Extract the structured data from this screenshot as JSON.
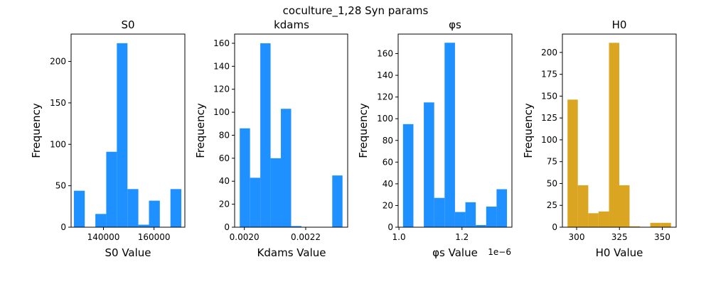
{
  "figure": {
    "suptitle": "coculture_1,28 Syn params"
  },
  "chart_data": [
    {
      "type": "bar",
      "title": "S0",
      "xlabel": "S0 Value",
      "ylabel": "Frequency",
      "color": "#1e90ff",
      "bins": [
        {
          "x0": 128300,
          "x1": 132600,
          "count": 44
        },
        {
          "x0": 132600,
          "x1": 136800,
          "count": 0
        },
        {
          "x0": 136800,
          "x1": 141100,
          "count": 16
        },
        {
          "x0": 141100,
          "x1": 145300,
          "count": 91
        },
        {
          "x0": 145300,
          "x1": 149500,
          "count": 222
        },
        {
          "x0": 149500,
          "x1": 153800,
          "count": 46
        },
        {
          "x0": 153800,
          "x1": 158000,
          "count": 3
        },
        {
          "x0": 158000,
          "x1": 162300,
          "count": 32
        },
        {
          "x0": 162300,
          "x1": 166500,
          "count": 0
        },
        {
          "x0": 166500,
          "x1": 170800,
          "count": 46
        }
      ],
      "xlim": [
        127200,
        172200
      ],
      "ylim": [
        0,
        233
      ],
      "xticks": [
        {
          "v": 140000,
          "label": "140000"
        },
        {
          "v": 160000,
          "label": "160000"
        }
      ],
      "yticks": [
        {
          "v": 0,
          "label": "0"
        },
        {
          "v": 50,
          "label": "50"
        },
        {
          "v": 100,
          "label": "100"
        },
        {
          "v": 150,
          "label": "150"
        },
        {
          "v": 200,
          "label": "200"
        }
      ]
    },
    {
      "type": "bar",
      "title": "kdams",
      "xlabel": "Kdams Value",
      "ylabel": "Frequency",
      "color": "#1e90ff",
      "bins": [
        {
          "x0": 0.001985,
          "x1": 0.0020185,
          "count": 86
        },
        {
          "x0": 0.0020185,
          "x1": 0.002052,
          "count": 43
        },
        {
          "x0": 0.002052,
          "x1": 0.0020855,
          "count": 160
        },
        {
          "x0": 0.0020855,
          "x1": 0.002119,
          "count": 60
        },
        {
          "x0": 0.002119,
          "x1": 0.0021525,
          "count": 103
        },
        {
          "x0": 0.0021525,
          "x1": 0.002186,
          "count": 1
        },
        {
          "x0": 0.002186,
          "x1": 0.0022195,
          "count": 0
        },
        {
          "x0": 0.0022195,
          "x1": 0.002253,
          "count": 0
        },
        {
          "x0": 0.002253,
          "x1": 0.0022865,
          "count": 0
        },
        {
          "x0": 0.0022865,
          "x1": 0.00232,
          "count": 45
        }
      ],
      "xlim": [
        0.0019683,
        0.0023368
      ],
      "ylim": [
        0,
        168
      ],
      "xticks": [
        {
          "v": 0.002,
          "label": "0.0020"
        },
        {
          "v": 0.0022,
          "label": "0.0022"
        }
      ],
      "yticks": [
        {
          "v": 0,
          "label": "0"
        },
        {
          "v": 20,
          "label": "20"
        },
        {
          "v": 40,
          "label": "40"
        },
        {
          "v": 60,
          "label": "60"
        },
        {
          "v": 80,
          "label": "80"
        },
        {
          "v": 100,
          "label": "100"
        },
        {
          "v": 120,
          "label": "120"
        },
        {
          "v": 140,
          "label": "140"
        },
        {
          "v": 160,
          "label": "160"
        }
      ]
    },
    {
      "type": "bar",
      "title": "φs",
      "xlabel": "φs Value",
      "ylabel": "Frequency",
      "offset_text": "1e−6",
      "color": "#1e90ff",
      "bins": [
        {
          "x0": 1.0129,
          "x1": 1.0459,
          "count": 95
        },
        {
          "x0": 1.0459,
          "x1": 1.0789,
          "count": 0
        },
        {
          "x0": 1.0789,
          "x1": 1.1118,
          "count": 115
        },
        {
          "x0": 1.1118,
          "x1": 1.1448,
          "count": 27
        },
        {
          "x0": 1.1448,
          "x1": 1.1778,
          "count": 170
        },
        {
          "x0": 1.1778,
          "x1": 1.2108,
          "count": 14
        },
        {
          "x0": 1.2108,
          "x1": 1.2438,
          "count": 23
        },
        {
          "x0": 1.2438,
          "x1": 1.2767,
          "count": 2
        },
        {
          "x0": 1.2767,
          "x1": 1.3097,
          "count": 19
        },
        {
          "x0": 1.3097,
          "x1": 1.3427,
          "count": 35
        }
      ],
      "xlim": [
        0.9975,
        1.3584
      ],
      "ylim": [
        0,
        178
      ],
      "xticks": [
        {
          "v": 1.0,
          "label": "1.0"
        },
        {
          "v": 1.2,
          "label": "1.2"
        }
      ],
      "yticks": [
        {
          "v": 0,
          "label": "0"
        },
        {
          "v": 20,
          "label": "20"
        },
        {
          "v": 40,
          "label": "40"
        },
        {
          "v": 60,
          "label": "60"
        },
        {
          "v": 80,
          "label": "80"
        },
        {
          "v": 100,
          "label": "100"
        },
        {
          "v": 120,
          "label": "120"
        },
        {
          "v": 140,
          "label": "140"
        },
        {
          "v": 160,
          "label": "160"
        }
      ]
    },
    {
      "type": "bar",
      "title": "H0",
      "xlabel": "H0 Value",
      "ylabel": "Frequency",
      "color": "#daa520",
      "bins": [
        {
          "x0": 294.7,
          "x1": 300.7,
          "count": 146
        },
        {
          "x0": 300.7,
          "x1": 306.8,
          "count": 48
        },
        {
          "x0": 306.8,
          "x1": 312.8,
          "count": 16
        },
        {
          "x0": 312.8,
          "x1": 318.9,
          "count": 18
        },
        {
          "x0": 318.9,
          "x1": 324.9,
          "count": 211
        },
        {
          "x0": 324.9,
          "x1": 330.9,
          "count": 48
        },
        {
          "x0": 330.9,
          "x1": 337.0,
          "count": 1
        },
        {
          "x0": 337.0,
          "x1": 343.0,
          "count": 0
        },
        {
          "x0": 343.0,
          "x1": 349.1,
          "count": 5
        },
        {
          "x0": 349.1,
          "x1": 355.1,
          "count": 5
        }
      ],
      "xlim": [
        291.7,
        358.1
      ],
      "ylim": [
        0,
        221
      ],
      "xticks": [
        {
          "v": 300,
          "label": "300"
        },
        {
          "v": 325,
          "label": "325"
        },
        {
          "v": 350,
          "label": "350"
        }
      ],
      "yticks": [
        {
          "v": 0,
          "label": "0"
        },
        {
          "v": 25,
          "label": "25"
        },
        {
          "v": 50,
          "label": "50"
        },
        {
          "v": 75,
          "label": "75"
        },
        {
          "v": 100,
          "label": "100"
        },
        {
          "v": 125,
          "label": "125"
        },
        {
          "v": 150,
          "label": "150"
        },
        {
          "v": 175,
          "label": "175"
        },
        {
          "v": 200,
          "label": "200"
        }
      ]
    }
  ]
}
